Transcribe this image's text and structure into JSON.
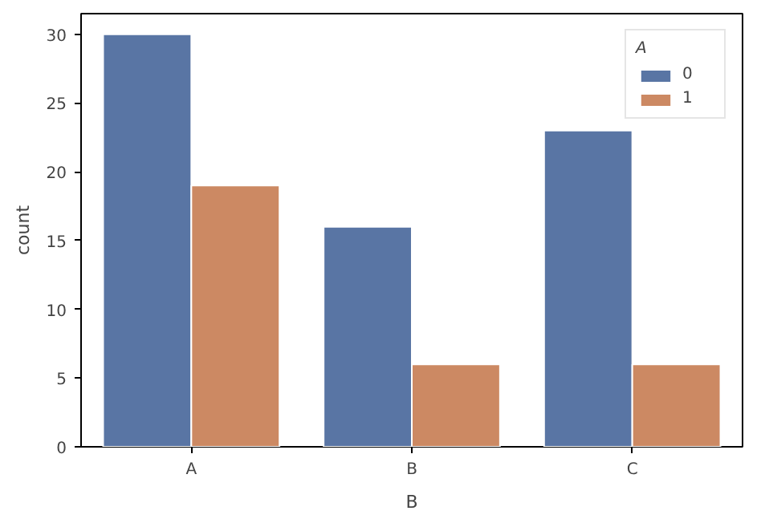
{
  "chart_data": {
    "type": "bar",
    "xlabel": "B",
    "ylabel": "count",
    "legend_title": "A",
    "categories": [
      "A",
      "B",
      "C"
    ],
    "series": [
      {
        "name": "0",
        "color": "#5975a4",
        "values": [
          30,
          16,
          23
        ]
      },
      {
        "name": "1",
        "color": "#cc8963",
        "values": [
          19,
          6,
          6
        ]
      }
    ],
    "ylim": [
      0,
      31.5
    ],
    "yticks": [
      0,
      5,
      10,
      15,
      20,
      25,
      30
    ],
    "grid": false,
    "legend": "top right"
  }
}
